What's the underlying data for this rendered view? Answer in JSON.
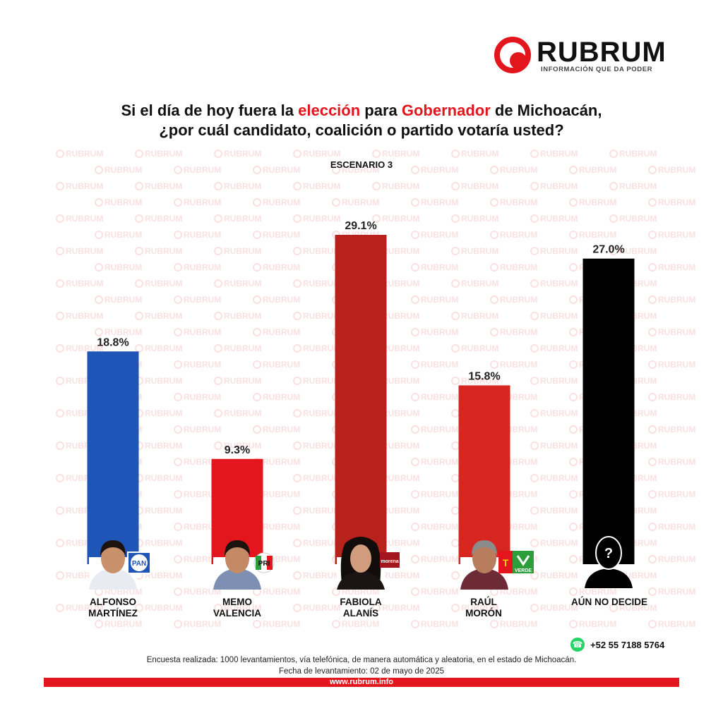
{
  "logo": {
    "name": "RUBRUM",
    "tagline": "INFORMACIÓN QUE DA PODER"
  },
  "title": {
    "line1_a": "Si el día de hoy fuera la ",
    "line1_b": "elección",
    "line1_c": " para ",
    "line1_d": "Gobernador",
    "line1_e": " de Michoacán,",
    "line2": "¿por cuál candidato, coalición o partido votaría usted?"
  },
  "scenario": "ESCENARIO 3",
  "watermark_text": "RUBRUM",
  "chart_data": {
    "type": "bar",
    "categories": [
      "ALFONSO MARTÍNEZ",
      "MEMO VALENCIA",
      "FABIOLA ALANÍS",
      "RAÚL MORÓN",
      "AÚN NO DECIDE"
    ],
    "values": [
      18.8,
      9.3,
      29.1,
      15.8,
      27.0
    ],
    "value_labels": [
      "18.8%",
      "9.3%",
      "29.1%",
      "15.8%",
      "27.0%"
    ],
    "colors": [
      "#1f55b6",
      "#e3161d",
      "#b8211c",
      "#d7261f",
      "#000000"
    ],
    "ylim": [
      0,
      30
    ],
    "grid": false
  },
  "candidates": [
    {
      "first": "ALFONSO",
      "last": "MARTÍNEZ",
      "party": "PAN"
    },
    {
      "first": "MEMO",
      "last": "VALENCIA",
      "party": "PRI"
    },
    {
      "first": "FABIOLA",
      "last": "ALANÍS",
      "party": "morena"
    },
    {
      "first": "RAÚL",
      "last": "MORÓN",
      "party": "PT / VERDE"
    },
    {
      "first": "AÚN NO DECIDE",
      "last": "",
      "party": ""
    }
  ],
  "undecided_icon_text": "?",
  "footer": {
    "phone": "+52 55 7188 5764",
    "line1": "Encuesta realizada: 1000 levantamientos, vía telefónica, de manera automática y aleatoria, en el estado de Michoacán.",
    "line2": "Fecha de levantamiento: 02 de mayo de 2025",
    "url": "www.rubrum.info"
  },
  "brand_colors": {
    "red": "#e3161d",
    "pan_blue": "#1f55b6",
    "verde": "#2e9e3a"
  }
}
